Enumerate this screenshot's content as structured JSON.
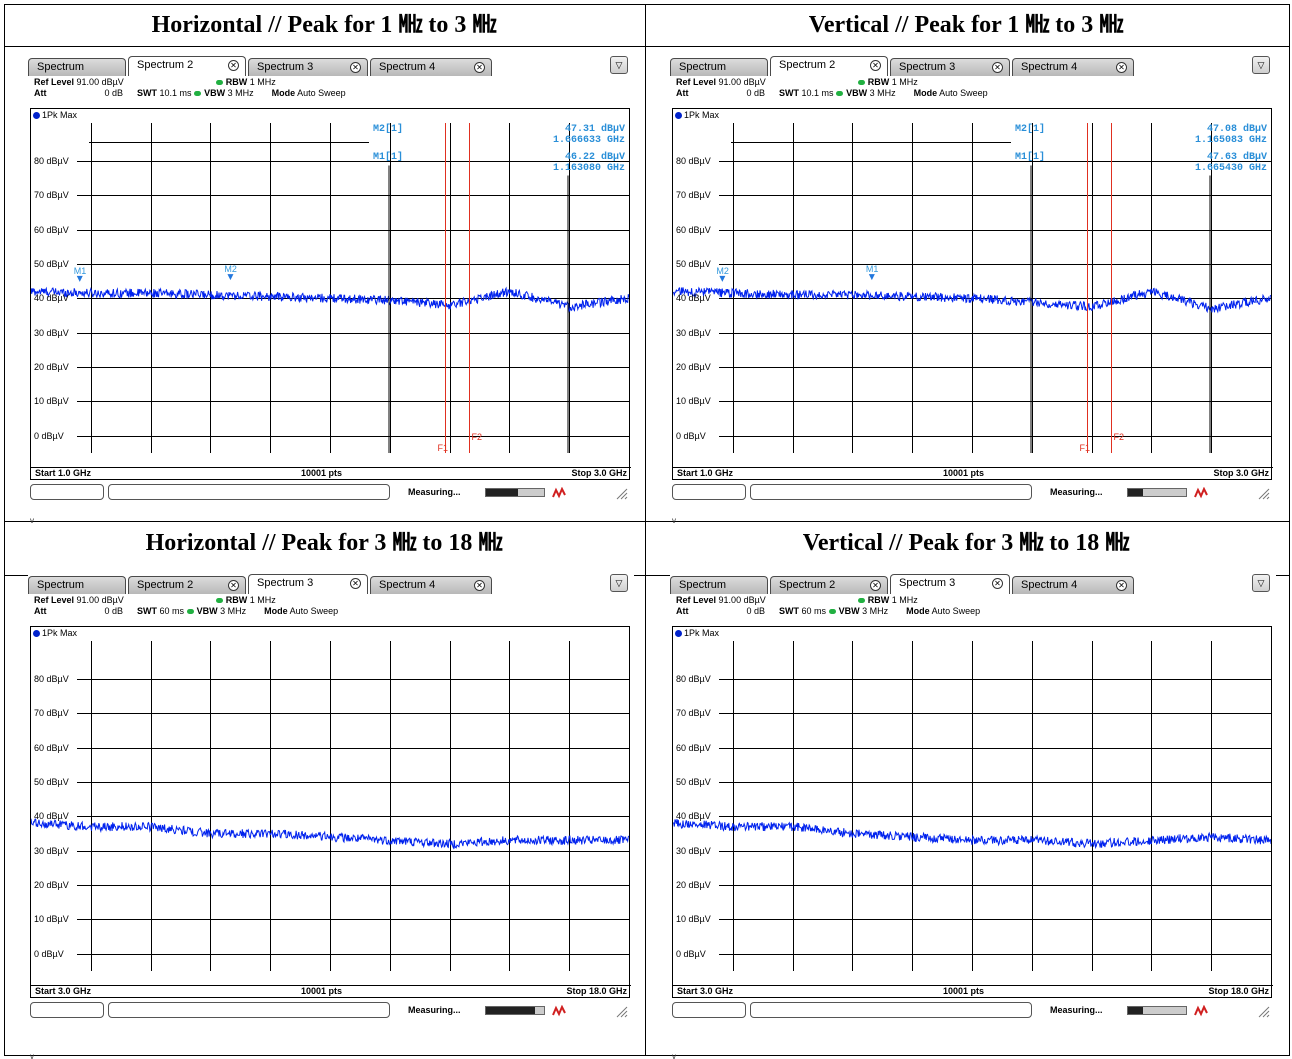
{
  "cells": [
    {
      "title": "Horizontal // Peak for 1 ㎒ to 3 ㎒",
      "tabs": [
        "Spectrum",
        "Spectrum 2",
        "Spectrum 3",
        "Spectrum 4"
      ],
      "active_tab": 1,
      "ref_level_label": "Ref Level",
      "ref_level": "91.00 dBµV",
      "att_label": "Att",
      "att": "0 dB",
      "swt_label": "SWT",
      "swt": "10.1 ms",
      "rbw_label": "RBW",
      "rbw": "1 MHz",
      "vbw_label": "VBW",
      "vbw": "3 MHz",
      "mode_label": "Mode",
      "mode": "Auto Sweep",
      "trace_label": "1Pk Max",
      "y_labels": [
        "80 dBµV",
        "70 dBµV",
        "60 dBµV",
        "50 dBµV",
        "40 dBµV",
        "30 dBµV",
        "20 dBµV",
        "10 dBµV",
        "0 dBµV"
      ],
      "start": "Start 1.0 GHz",
      "pts": "10001 pts",
      "stop": "Stop 3.0 GHz",
      "measuring": "Measuring...",
      "progress": 0.55,
      "markers": [
        {
          "name": "M2[1]",
          "level": "47.31 dBµV",
          "freq": "1.666633 GHz"
        },
        {
          "name": "M1[1]",
          "level": "46.22 dBµV",
          "freq": "1.163080 GHz"
        }
      ],
      "marker_tags": [
        {
          "label": "M1",
          "f": 1.163,
          "db": 44.5
        },
        {
          "label": "M2",
          "f": 1.667,
          "db": 45.0
        }
      ],
      "freq_lines": [
        "F1",
        "F2"
      ],
      "chart_data": {
        "type": "line",
        "x_range_ghz": [
          1.0,
          3.0
        ],
        "ylim": [
          -5,
          91
        ],
        "series": [
          {
            "x": [
              1.0,
              1.2,
              1.4,
              1.6,
              1.8,
              2.0,
              2.2,
              2.4,
              2.6,
              2.8,
              3.0
            ],
            "y": [
              42,
              41.5,
              41.5,
              41,
              40.5,
              40,
              39.5,
              38,
              42,
              37.5,
              40
            ]
          }
        ]
      },
      "v_mark": "v"
    },
    {
      "title": "Vertical // Peak for 1 ㎒ to 3 ㎒",
      "tabs": [
        "Spectrum",
        "Spectrum 2",
        "Spectrum 3",
        "Spectrum 4"
      ],
      "active_tab": 1,
      "ref_level_label": "Ref Level",
      "ref_level": "91.00 dBµV",
      "att_label": "Att",
      "att": "0 dB",
      "swt_label": "SWT",
      "swt": "10.1 ms",
      "rbw_label": "RBW",
      "rbw": "1 MHz",
      "vbw_label": "VBW",
      "vbw": "3 MHz",
      "mode_label": "Mode",
      "mode": "Auto Sweep",
      "trace_label": "1Pk Max",
      "y_labels": [
        "80 dBµV",
        "70 dBµV",
        "60 dBµV",
        "50 dBµV",
        "40 dBµV",
        "30 dBµV",
        "20 dBµV",
        "10 dBµV",
        "0 dBµV"
      ],
      "start": "Start 1.0 GHz",
      "pts": "10001 pts",
      "stop": "Stop 3.0 GHz",
      "measuring": "Measuring...",
      "progress": 0.25,
      "markers": [
        {
          "name": "M2[1]",
          "level": "47.08 dBµV",
          "freq": "1.165083 GHz"
        },
        {
          "name": "M1[1]",
          "level": "47.63 dBµV",
          "freq": "1.665430 GHz"
        }
      ],
      "marker_tags": [
        {
          "label": "M2",
          "f": 1.165,
          "db": 44.5
        },
        {
          "label": "M1",
          "f": 1.665,
          "db": 45.0
        }
      ],
      "freq_lines": [
        "F1",
        "F2"
      ],
      "chart_data": {
        "type": "line",
        "x_range_ghz": [
          1.0,
          3.0
        ],
        "ylim": [
          -5,
          91
        ],
        "series": [
          {
            "x": [
              1.0,
              1.2,
              1.4,
              1.6,
              1.8,
              2.0,
              2.2,
              2.4,
              2.6,
              2.8,
              3.0
            ],
            "y": [
              42,
              41.5,
              41,
              41,
              40.5,
              40,
              39,
              37.5,
              42,
              37,
              40
            ]
          }
        ]
      },
      "v_mark": "v"
    },
    {
      "title": "Horizontal // Peak for 3 ㎒ to 18 ㎒",
      "tabs": [
        "Spectrum",
        "Spectrum 2",
        "Spectrum 3",
        "Spectrum 4"
      ],
      "active_tab": 2,
      "ref_level_label": "Ref Level",
      "ref_level": "91.00 dBµV",
      "att_label": "Att",
      "att": "0 dB",
      "swt_label": "SWT",
      "swt": "60 ms",
      "rbw_label": "RBW",
      "rbw": "1 MHz",
      "vbw_label": "VBW",
      "vbw": "3 MHz",
      "mode_label": "Mode",
      "mode": "Auto Sweep",
      "trace_label": "1Pk Max",
      "y_labels": [
        "80 dBµV",
        "70 dBµV",
        "60 dBµV",
        "50 dBµV",
        "40 dBµV",
        "30 dBµV",
        "20 dBµV",
        "10 dBµV",
        "0 dBµV"
      ],
      "start": "Start 3.0 GHz",
      "pts": "10001 pts",
      "stop": "Stop 18.0 GHz",
      "measuring": "Measuring...",
      "progress": 0.85,
      "markers": [],
      "marker_tags": [],
      "freq_lines": [],
      "chart_data": {
        "type": "line",
        "x_range_ghz": [
          3.0,
          18.0
        ],
        "ylim": [
          -5,
          91
        ],
        "series": [
          {
            "x": [
              3,
              4.5,
              6,
              7.5,
              9,
              10.5,
              12,
              13.5,
              15,
              16.5,
              18
            ],
            "y": [
              38,
              37,
              37,
              35,
              35,
              34,
              33,
              32,
              33,
              33,
              33
            ]
          }
        ]
      },
      "v_mark": "v"
    },
    {
      "title": "Vertical // Peak for 3 ㎒ to 18 ㎒",
      "tabs": [
        "Spectrum",
        "Spectrum 2",
        "Spectrum 3",
        "Spectrum 4"
      ],
      "active_tab": 2,
      "ref_level_label": "Ref Level",
      "ref_level": "91.00 dBµV",
      "att_label": "Att",
      "att": "0 dB",
      "swt_label": "SWT",
      "swt": "60 ms",
      "rbw_label": "RBW",
      "rbw": "1 MHz",
      "vbw_label": "VBW",
      "vbw": "3 MHz",
      "mode_label": "Mode",
      "mode": "Auto Sweep",
      "trace_label": "1Pk Max",
      "y_labels": [
        "80 dBµV",
        "70 dBµV",
        "60 dBµV",
        "50 dBµV",
        "40 dBµV",
        "30 dBµV",
        "20 dBµV",
        "10 dBµV",
        "0 dBµV"
      ],
      "start": "Start 3.0 GHz",
      "pts": "10001 pts",
      "stop": "Stop 18.0 GHz",
      "measuring": "Measuring...",
      "progress": 0.25,
      "markers": [],
      "marker_tags": [],
      "freq_lines": [],
      "chart_data": {
        "type": "line",
        "x_range_ghz": [
          3.0,
          18.0
        ],
        "ylim": [
          -5,
          91
        ],
        "series": [
          {
            "x": [
              3,
              4.5,
              6,
              7.5,
              9,
              10.5,
              12,
              13.5,
              15,
              16.5,
              18
            ],
            "y": [
              38,
              37,
              37,
              35,
              34,
              33,
              33,
              32,
              33,
              34,
              33
            ]
          }
        ]
      },
      "v_mark": "v"
    }
  ]
}
